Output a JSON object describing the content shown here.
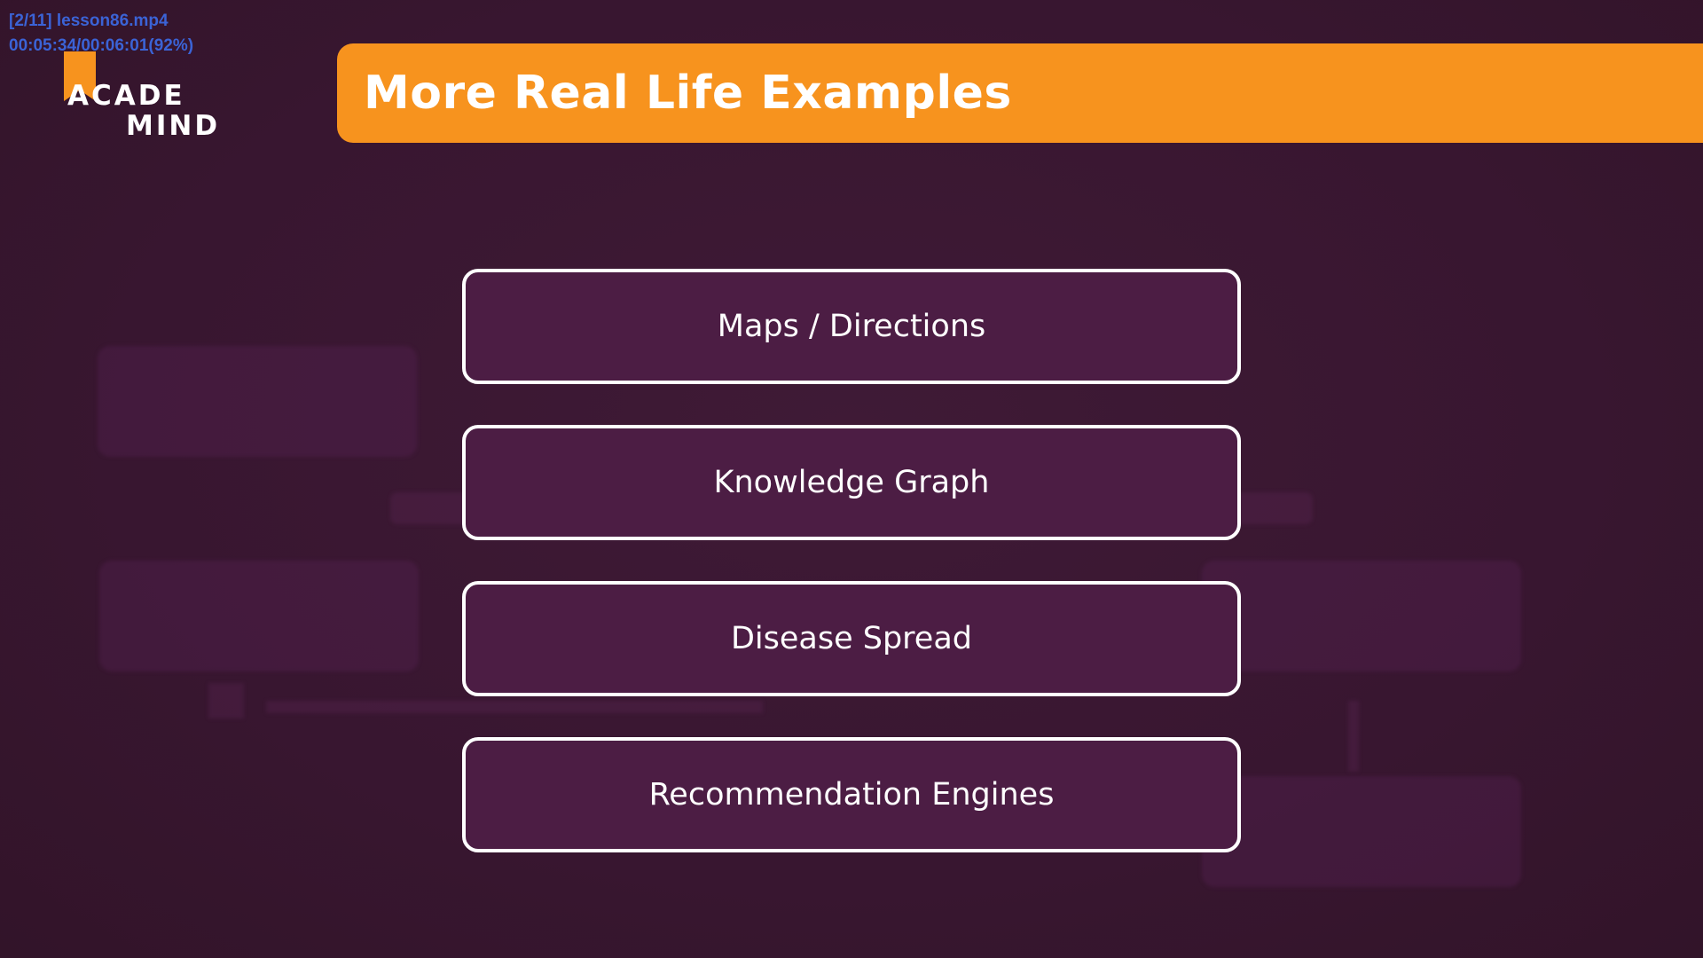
{
  "player": {
    "file": "[2/11] lesson86.mp4",
    "time": "00:05:34/00:06:01(92%)"
  },
  "logo": {
    "line1": "ACADE",
    "line2": "MIND"
  },
  "title": "More Real Life Examples",
  "examples": [
    "Maps / Directions",
    "Knowledge Graph",
    "Disease Spread",
    "Recommendation Engines"
  ],
  "colors": {
    "background": "#3a1731",
    "accent": "#f7931e",
    "box_fill": "#4c1d44",
    "box_border": "#ffffff"
  }
}
